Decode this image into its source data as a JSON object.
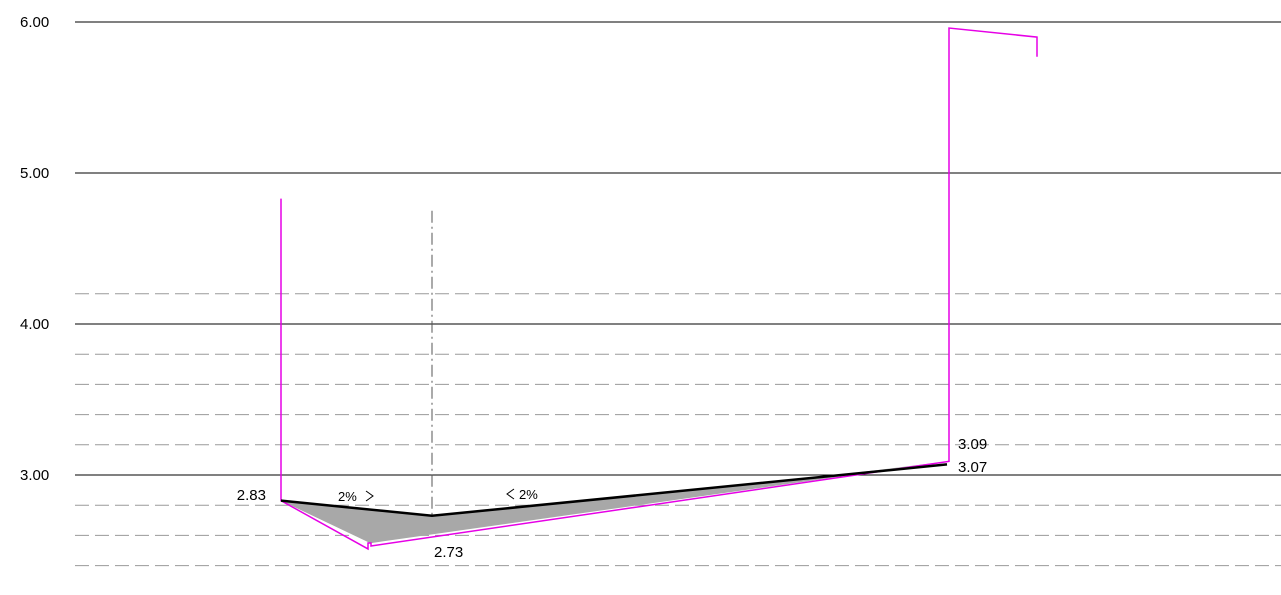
{
  "axis": {
    "major_labels": [
      "6.00",
      "5.00",
      "4.00",
      "3.00"
    ],
    "major_values": [
      6.0,
      5.0,
      4.0,
      3.0
    ],
    "minor_values": [
      4.2,
      3.8,
      3.6,
      3.4,
      3.2,
      2.8,
      2.6,
      2.4
    ],
    "range": [
      2.3,
      6.1
    ]
  },
  "colors": {
    "boundary": "#e600e6",
    "finished_surface": "#000000",
    "fill": "#a8a8a8",
    "grid_minor": "#9a9a9a",
    "centerline": "#555555"
  },
  "elevations": {
    "left_edge": "2.83",
    "center_low": "2.73",
    "right_upper": "3.09",
    "right_lower": "3.07"
  },
  "slopes": {
    "left": "2%",
    "right": "2%"
  },
  "surface_profile": {
    "left_elev": 2.83,
    "center_elev": 2.73,
    "right_elev": 3.07
  },
  "boundary_profile": {
    "bottom_left_elev": 2.55,
    "bottom_right_elev": 3.09,
    "left_wall_top_elev": 4.83,
    "right_wall_top_elev": 5.96,
    "right_cap_end_elev": 5.9,
    "right_cap_drop_elev": 5.77
  },
  "centerline": {
    "top_elev": 4.75,
    "bottom_elev": 2.73
  }
}
